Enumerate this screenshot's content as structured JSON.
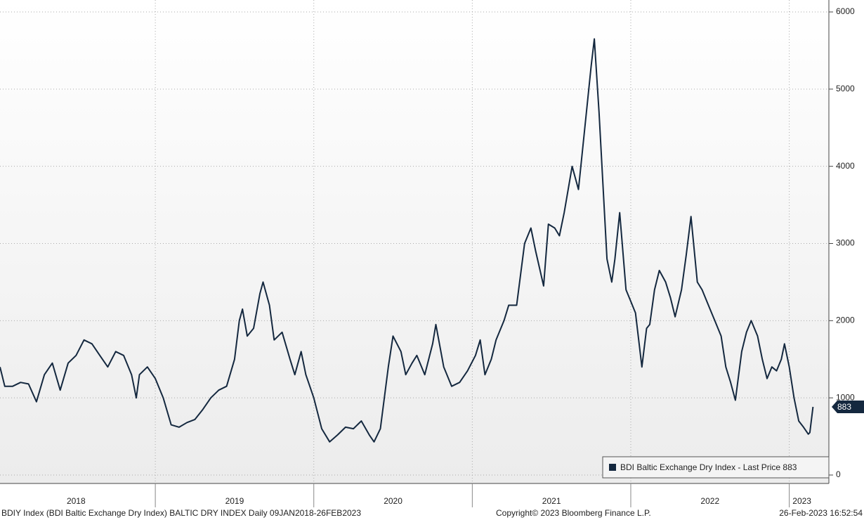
{
  "chart_data": {
    "type": "line",
    "series": [
      {
        "name": "BDI Baltic Exchange Dry Index - Last Price 883",
        "color": "#14283f",
        "values": [
          1400,
          1150,
          1150,
          1200,
          1180,
          950,
          1300,
          1450,
          1100,
          1450,
          1550,
          1750,
          1700,
          1550,
          1400,
          1600,
          1550,
          1300,
          1000,
          1300,
          1400,
          1250,
          1000,
          650,
          620,
          680,
          720,
          850,
          1000,
          1100,
          1150,
          1500,
          2000,
          2150,
          1800,
          1900,
          2350,
          2500,
          2200,
          1750,
          1850,
          1500,
          1300,
          1600,
          1300,
          1000,
          600,
          430,
          520,
          620,
          600,
          700,
          520,
          430,
          600,
          1400,
          1800,
          1600,
          1300,
          1450,
          1550,
          1300,
          1700,
          1950,
          1400,
          1150,
          1200,
          1350,
          1550,
          1750,
          1300,
          1500,
          1750,
          2000,
          2200,
          2200,
          3000,
          3200,
          2900,
          2450,
          3250,
          3200,
          3100,
          3400,
          4000,
          3700,
          4300,
          5300,
          5650,
          4700,
          2800,
          2500,
          2800,
          3400,
          2400,
          2250,
          2100,
          1400,
          1900,
          1950,
          2400,
          2650,
          2500,
          2300,
          2050,
          2400,
          2850,
          3350,
          2500,
          2400,
          2150,
          2000,
          1800,
          1400,
          1200,
          970,
          1600,
          1850,
          2000,
          1800,
          1500,
          1250,
          1400,
          1350,
          1500,
          1700,
          1400,
          1000,
          700,
          620,
          530,
          550,
          883
        ]
      }
    ],
    "x": [
      2018.02,
      2018.05,
      2018.1,
      2018.15,
      2018.2,
      2018.25,
      2018.3,
      2018.35,
      2018.4,
      2018.45,
      2018.5,
      2018.55,
      2018.6,
      2018.65,
      2018.7,
      2018.75,
      2018.8,
      2018.85,
      2018.88,
      2018.9,
      2018.95,
      2019.0,
      2019.05,
      2019.1,
      2019.15,
      2019.2,
      2019.25,
      2019.3,
      2019.35,
      2019.4,
      2019.45,
      2019.5,
      2019.53,
      2019.55,
      2019.58,
      2019.62,
      2019.66,
      2019.68,
      2019.72,
      2019.75,
      2019.8,
      2019.85,
      2019.88,
      2019.92,
      2019.95,
      2020.0,
      2020.05,
      2020.1,
      2020.15,
      2020.2,
      2020.25,
      2020.3,
      2020.35,
      2020.38,
      2020.42,
      2020.47,
      2020.5,
      2020.55,
      2020.58,
      2020.62,
      2020.65,
      2020.7,
      2020.75,
      2020.77,
      2020.82,
      2020.87,
      2020.92,
      2020.97,
      2021.02,
      2021.05,
      2021.08,
      2021.12,
      2021.15,
      2021.2,
      2021.23,
      2021.28,
      2021.33,
      2021.37,
      2021.4,
      2021.45,
      2021.48,
      2021.52,
      2021.55,
      2021.58,
      2021.63,
      2021.67,
      2021.7,
      2021.75,
      2021.77,
      2021.8,
      2021.85,
      2021.88,
      2021.9,
      2021.93,
      2021.97,
      2022.0,
      2022.03,
      2022.07,
      2022.1,
      2022.12,
      2022.15,
      2022.18,
      2022.22,
      2022.25,
      2022.28,
      2022.32,
      2022.35,
      2022.38,
      2022.42,
      2022.45,
      2022.5,
      2022.53,
      2022.57,
      2022.6,
      2022.63,
      2022.66,
      2022.7,
      2022.73,
      2022.76,
      2022.8,
      2022.83,
      2022.86,
      2022.89,
      2022.92,
      2022.95,
      2022.97,
      2023.0,
      2023.03,
      2023.06,
      2023.09,
      2023.12,
      2023.13,
      2023.15
    ],
    "xlim": [
      2018.02,
      2023.25
    ],
    "xticks": [
      {
        "value": 2018.5,
        "label": "2018"
      },
      {
        "value": 2019.5,
        "label": "2019"
      },
      {
        "value": 2020.5,
        "label": "2020"
      },
      {
        "value": 2021.5,
        "label": "2021"
      },
      {
        "value": 2022.5,
        "label": "2022"
      },
      {
        "value": 2023.08,
        "label": "2023"
      }
    ],
    "ylim": [
      0,
      6000
    ],
    "yticks": [
      0,
      1000,
      2000,
      3000,
      4000,
      5000,
      6000
    ],
    "grid": true,
    "legend": "lower right",
    "last_price": 883,
    "source": "BDIY Index (BDI Baltic Exchange Dry Index) BALTIC DRY INDEX  Daily 09JAN2018-26FEB2023",
    "copyright": "Copyright© 2023 Bloomberg Finance L.P.",
    "timestamp": "26-Feb-2023  16:52:54"
  }
}
